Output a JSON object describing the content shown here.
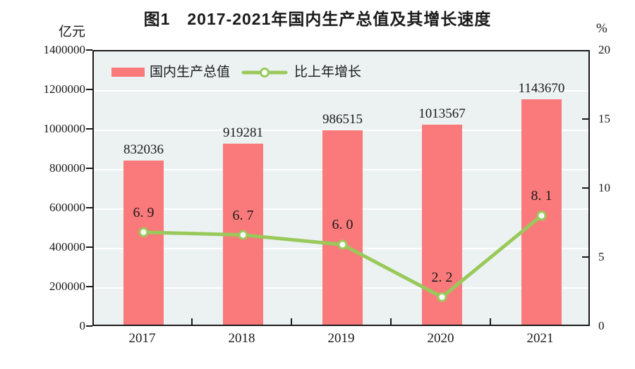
{
  "title": "图1　2017-2021年国内生产总值及其增长速度",
  "axes": {
    "left": {
      "unit": "亿元",
      "tick_labels": [
        "1400000",
        "1200000",
        "1000000",
        "800000",
        "600000",
        "400000",
        "200000",
        "0"
      ]
    },
    "right": {
      "unit": "%",
      "tick_labels": [
        "20",
        "15",
        "10",
        "5",
        "0"
      ]
    },
    "x": {
      "tick_labels": [
        "2017",
        "2018",
        "2019",
        "2020",
        "2021"
      ]
    }
  },
  "legend": {
    "bar_label": "国内生产总值",
    "line_label": "比上年增长"
  },
  "colors": {
    "bar": "#fa7a7c",
    "line": "#99c95a",
    "marker_fill": "#ffffff",
    "plot_bg": "#ecf2f2",
    "grid": "#ffffff",
    "axis": "#1a1a1a",
    "text": "#1a1a1a"
  },
  "chart_data": {
    "type": "bar+line",
    "categories": [
      "2017",
      "2018",
      "2019",
      "2020",
      "2021"
    ],
    "series": [
      {
        "name": "国内生产总值",
        "type": "bar",
        "axis": "left",
        "unit": "亿元",
        "values": [
          832036,
          919281,
          986515,
          1013567,
          1143670
        ],
        "data_labels": [
          "832036",
          "919281",
          "986515",
          "1013567",
          "1143670"
        ]
      },
      {
        "name": "比上年增长",
        "type": "line",
        "axis": "right",
        "unit": "%",
        "values": [
          6.9,
          6.7,
          6.0,
          2.2,
          8.1
        ],
        "data_labels": [
          "6. 9",
          "6. 7",
          "6. 0",
          "2. 2",
          "8. 1"
        ]
      }
    ],
    "title": "图1　2017-2021年国内生产总值及其增长速度",
    "left_ylim": [
      0,
      1400000
    ],
    "left_step": 200000,
    "right_ylim": [
      0,
      20
    ],
    "right_step": 5,
    "grid": true,
    "legend_position": "inside-top-left"
  }
}
